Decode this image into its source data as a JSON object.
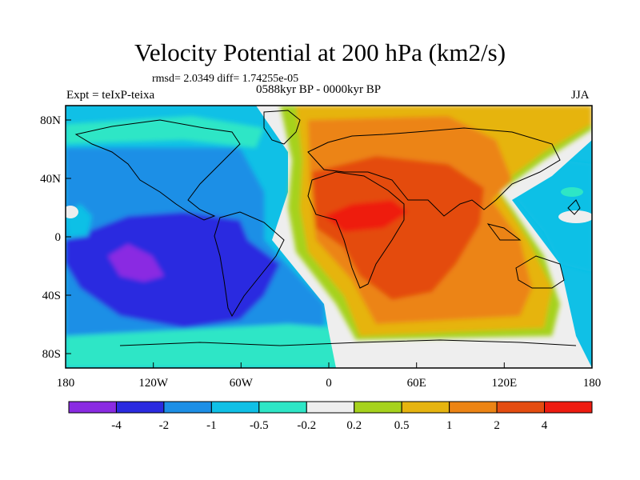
{
  "title": "Velocity Potential at 200 hPa (km2/s)",
  "stats": "rmsd= 2.0349 diff= 1.74255e-05",
  "experiment": "Expt = teIxP-teixa",
  "period": "0588kyr BP - 0000kyr BP",
  "season": "JJA",
  "map": {
    "projection": "cylindrical equidistant",
    "x_ticks": [
      "180",
      "120W",
      "60W",
      "0",
      "60E",
      "120E",
      "180"
    ],
    "y_ticks": [
      "80N",
      "40N",
      "0",
      "40S",
      "80S"
    ]
  },
  "colorbar": {
    "labels": [
      "-4",
      "-2",
      "-1",
      "-0.5",
      "-0.2",
      "0.2",
      "0.5",
      "1",
      "2",
      "4"
    ],
    "colors": [
      "#8a2be2",
      "#2a2ae0",
      "#1c8fe6",
      "#10c0e6",
      "#2ee6c6",
      "#eeeeee",
      "#a6d21c",
      "#e6b410",
      "#ec8414",
      "#e44c10",
      "#ee1b10"
    ]
  }
}
